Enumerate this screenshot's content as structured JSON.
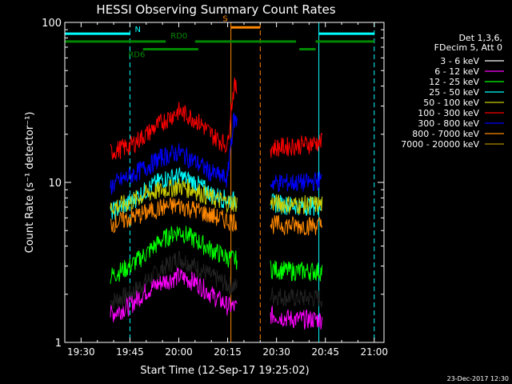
{
  "chart_data": {
    "type": "line",
    "title": "HESSI Observing Summary Count Rates",
    "xlabel": "Start Time (12-Sep-17 19:25:02)",
    "ylabel": "Count Rate (s⁻¹ detector⁻¹)",
    "yscale": "log",
    "xlim": [
      "19:25",
      "21:03"
    ],
    "ylim": [
      1,
      100
    ],
    "x_ticks": [
      "19:30",
      "19:45",
      "20:00",
      "20:15",
      "20:30",
      "20:45",
      "21:00"
    ],
    "y_ticks": [
      "1",
      "10",
      "100"
    ],
    "legend_header": [
      "Det 1,3,6,",
      "FDecim 5, Att 0"
    ],
    "legend_position": "right",
    "series": [
      {
        "name": "3 - 6 keV",
        "color": "#000000",
        "x": [
          "19:39",
          "19:45",
          "19:50",
          "19:55",
          "20:00",
          "20:05",
          "20:10",
          "20:15",
          "20:28",
          "20:35",
          "20:40",
          "20:44"
        ],
        "y": [
          1.8,
          2.0,
          2.4,
          2.9,
          3.4,
          3.0,
          2.6,
          2.3,
          2.0,
          1.9,
          1.9,
          1.9
        ]
      },
      {
        "name": "6 - 12 keV",
        "color": "#ff00ff",
        "x": [
          "19:39",
          "19:45",
          "19:50",
          "19:55",
          "20:00",
          "20:05",
          "20:10",
          "20:15",
          "20:28",
          "20:35",
          "20:40",
          "20:44"
        ],
        "y": [
          1.5,
          1.7,
          2.1,
          2.4,
          2.6,
          2.4,
          2.0,
          1.7,
          1.5,
          1.4,
          1.4,
          1.4
        ]
      },
      {
        "name": "12 - 25 keV",
        "color": "#00ff00",
        "x": [
          "19:39",
          "19:45",
          "19:50",
          "19:55",
          "20:00",
          "20:05",
          "20:10",
          "20:15",
          "20:28",
          "20:35",
          "20:40",
          "20:44"
        ],
        "y": [
          2.6,
          3.0,
          3.6,
          4.4,
          5.0,
          4.4,
          3.8,
          3.4,
          2.9,
          2.8,
          2.8,
          2.8
        ]
      },
      {
        "name": "25 - 50 keV",
        "color": "#00ffff",
        "x": [
          "19:39",
          "19:45",
          "19:50",
          "19:55",
          "20:00",
          "20:05",
          "20:10",
          "20:15",
          "20:28",
          "20:35",
          "20:40",
          "20:44"
        ],
        "y": [
          6.5,
          7.5,
          9.0,
          10.5,
          11.0,
          10.0,
          8.5,
          7.8,
          7.5,
          7.2,
          7.2,
          7.2
        ]
      },
      {
        "name": "50 - 100 keV",
        "color": "#cccc00",
        "x": [
          "19:39",
          "19:45",
          "19:50",
          "19:55",
          "20:00",
          "20:05",
          "20:10",
          "20:15",
          "20:28",
          "20:35",
          "20:40",
          "20:44"
        ],
        "y": [
          7.0,
          7.5,
          8.5,
          9.0,
          9.5,
          9.0,
          8.0,
          7.5,
          7.5,
          7.3,
          7.3,
          7.3
        ]
      },
      {
        "name": "100 - 300 keV",
        "color": "#ff0000",
        "x": [
          "19:39",
          "19:45",
          "19:50",
          "19:55",
          "20:00",
          "20:05",
          "20:10",
          "20:15",
          "20:17",
          "20:28",
          "20:35",
          "20:40",
          "20:44"
        ],
        "y": [
          15.5,
          17.0,
          20.0,
          24.0,
          28.0,
          25.0,
          20.0,
          17.0,
          40.0,
          16.5,
          17.0,
          17.5,
          18.0
        ]
      },
      {
        "name": "300 - 800 keV",
        "color": "#0000ff",
        "x": [
          "19:39",
          "19:45",
          "19:50",
          "19:55",
          "20:00",
          "20:05",
          "20:10",
          "20:15",
          "20:17",
          "20:28",
          "20:35",
          "20:40",
          "20:44"
        ],
        "y": [
          9.5,
          11.0,
          12.5,
          14.5,
          15.5,
          13.5,
          11.5,
          10.5,
          25.0,
          10.0,
          10.0,
          10.0,
          10.5
        ]
      },
      {
        "name": "800 - 7000 keV",
        "color": "#ff8800",
        "x": [
          "19:39",
          "19:45",
          "19:50",
          "19:55",
          "20:00",
          "20:05",
          "20:10",
          "20:15",
          "20:28",
          "20:35",
          "20:40",
          "20:44"
        ],
        "y": [
          5.5,
          6.0,
          6.5,
          7.0,
          7.2,
          6.8,
          6.2,
          5.8,
          5.5,
          5.4,
          5.4,
          5.4
        ]
      },
      {
        "name": "7000 - 20000 keV",
        "color": "#b08800",
        "x": [],
        "y": []
      }
    ],
    "data_gap": [
      "20:18",
      "20:28"
    ],
    "flag_bars": [
      {
        "label": "N",
        "color": "#00ffff",
        "y": 85,
        "segments": [
          [
            "19:25",
            "19:45"
          ],
          [
            "20:43",
            "21:00"
          ]
        ]
      },
      {
        "label": "RD0",
        "color": "#008800",
        "y": 76,
        "segments": [
          [
            "19:25",
            "19:56"
          ],
          [
            "20:05",
            "20:36"
          ],
          [
            "20:42",
            "21:00"
          ]
        ]
      },
      {
        "label": "RD6",
        "color": "#008800",
        "y": 68,
        "segments": [
          [
            "19:49",
            "20:06"
          ],
          [
            "20:37",
            "20:42"
          ]
        ]
      },
      {
        "label": "S",
        "color": "#ff8800",
        "y": 93,
        "segments": [
          [
            "20:16",
            "20:25"
          ]
        ]
      }
    ],
    "vertical_markers": [
      {
        "x": "19:25",
        "color": "#00ffff",
        "style": "solid"
      },
      {
        "x": "19:45",
        "color": "#00ffff",
        "style": "dashed"
      },
      {
        "x": "20:16",
        "color": "#ff8800",
        "style": "solid"
      },
      {
        "x": "20:25",
        "color": "#ff8800",
        "style": "dashed"
      },
      {
        "x": "20:43",
        "color": "#00ffff",
        "style": "solid"
      },
      {
        "x": "21:00",
        "color": "#00ffff",
        "style": "dashed"
      }
    ]
  },
  "footer": {
    "timestamp": "23-Dec-2017 12:30"
  }
}
